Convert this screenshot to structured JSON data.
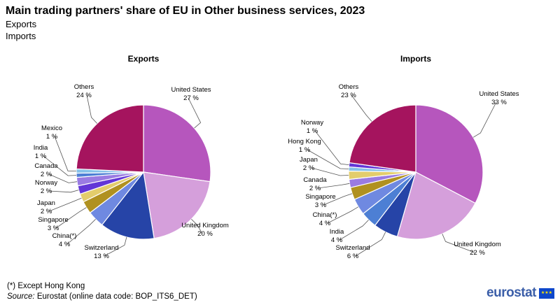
{
  "title": "Main trading partners' share of EU in Other business services, 2023",
  "subtitle_lines": [
    "Exports",
    "Imports"
  ],
  "footnote": "(*) Except Hong Kong",
  "source_label": "Source:",
  "source_text": "Eurostat (online data code: BOP_ITS6_DET)",
  "logo_text": "eurostat",
  "colors": {
    "United States": "#b656bd",
    "United Kingdom": "#d59fdb",
    "Switzerland": "#2644a7",
    "China(*)": "#6f89e1",
    "Singapore": "#b09120",
    "Japan": "#e3cd6c",
    "Norway": "#6236d7",
    "Canada": "#9a7be2",
    "India": "#4d7fd4",
    "Mexico": "#85c1e9",
    "Hong Kong": "#85c1e9",
    "Others": "#a5145e"
  },
  "chart_data": [
    {
      "type": "pie",
      "title": "Exports",
      "unit": "%",
      "slices": [
        {
          "label": "United States",
          "value": 27
        },
        {
          "label": "United Kingdom",
          "value": 20
        },
        {
          "label": "Switzerland",
          "value": 13
        },
        {
          "label": "China(*)",
          "value": 4
        },
        {
          "label": "Singapore",
          "value": 3
        },
        {
          "label": "Japan",
          "value": 2
        },
        {
          "label": "Norway",
          "value": 2
        },
        {
          "label": "Canada",
          "value": 2
        },
        {
          "label": "India",
          "value": 1
        },
        {
          "label": "Mexico",
          "value": 1
        },
        {
          "label": "Others",
          "value": 24
        }
      ]
    },
    {
      "type": "pie",
      "title": "Imports",
      "unit": "%",
      "slices": [
        {
          "label": "United States",
          "value": 33
        },
        {
          "label": "United Kingdom",
          "value": 22
        },
        {
          "label": "Switzerland",
          "value": 6
        },
        {
          "label": "India",
          "value": 4
        },
        {
          "label": "China(*)",
          "value": 4
        },
        {
          "label": "Singapore",
          "value": 3
        },
        {
          "label": "Canada",
          "value": 2
        },
        {
          "label": "Japan",
          "value": 2
        },
        {
          "label": "Hong Kong",
          "value": 1
        },
        {
          "label": "Norway",
          "value": 1
        },
        {
          "label": "Others",
          "value": 23
        }
      ]
    }
  ]
}
